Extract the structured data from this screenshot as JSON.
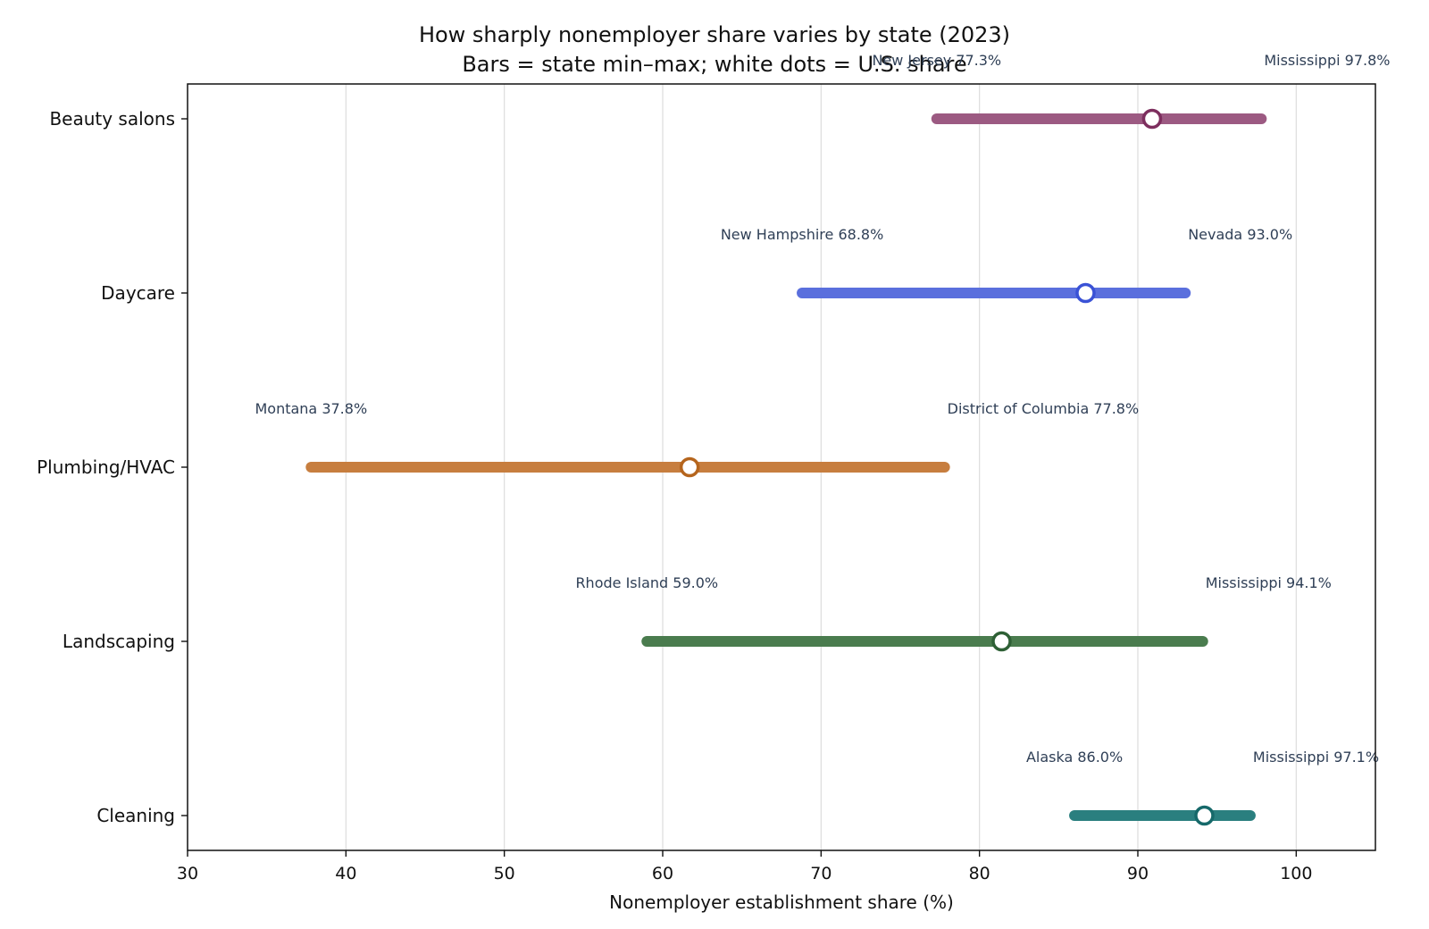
{
  "chart_data": {
    "type": "range",
    "title": "How sharply nonemployer share varies by state (2023)",
    "subtitle": "Bars = state min–max; white dots = U.S. share",
    "xlabel": "Nonemployer establishment share (%)",
    "ylabel": "",
    "xlim": [
      30,
      105
    ],
    "xticks": [
      30,
      40,
      50,
      60,
      70,
      80,
      90,
      100
    ],
    "grid": "vertical",
    "categories": [
      "Beauty salons",
      "Daycare",
      "Plumbing/HVAC",
      "Landscaping",
      "Cleaning"
    ],
    "series": [
      {
        "category": "Beauty salons",
        "min": 77.3,
        "max": 97.8,
        "us": 90.9,
        "min_label": "New Jersey 77.3%",
        "max_label": "Mississippi 97.8%",
        "color": "#9c5a82",
        "dot_edge": "#7d2e5e"
      },
      {
        "category": "Daycare",
        "min": 68.8,
        "max": 93.0,
        "us": 86.7,
        "min_label": "New Hampshire 68.8%",
        "max_label": "Nevada 93.0%",
        "color": "#5a6fdd",
        "dot_edge": "#3a52d6"
      },
      {
        "category": "Plumbing/HVAC",
        "min": 37.8,
        "max": 77.8,
        "us": 61.7,
        "min_label": "Montana 37.8%",
        "max_label": "District of Columbia 77.8%",
        "color": "#c77e3f",
        "dot_edge": "#b5651d"
      },
      {
        "category": "Landscaping",
        "min": 59.0,
        "max": 94.1,
        "us": 81.4,
        "min_label": "Rhode Island 59.0%",
        "max_label": "Mississippi 94.1%",
        "color": "#4a7c4e",
        "dot_edge": "#2e6035"
      },
      {
        "category": "Cleaning",
        "min": 86.0,
        "max": 97.1,
        "us": 94.2,
        "min_label": "Alaska 86.0%",
        "max_label": "Mississippi 97.1%",
        "color": "#2a7f7f",
        "dot_edge": "#16696a"
      }
    ]
  }
}
